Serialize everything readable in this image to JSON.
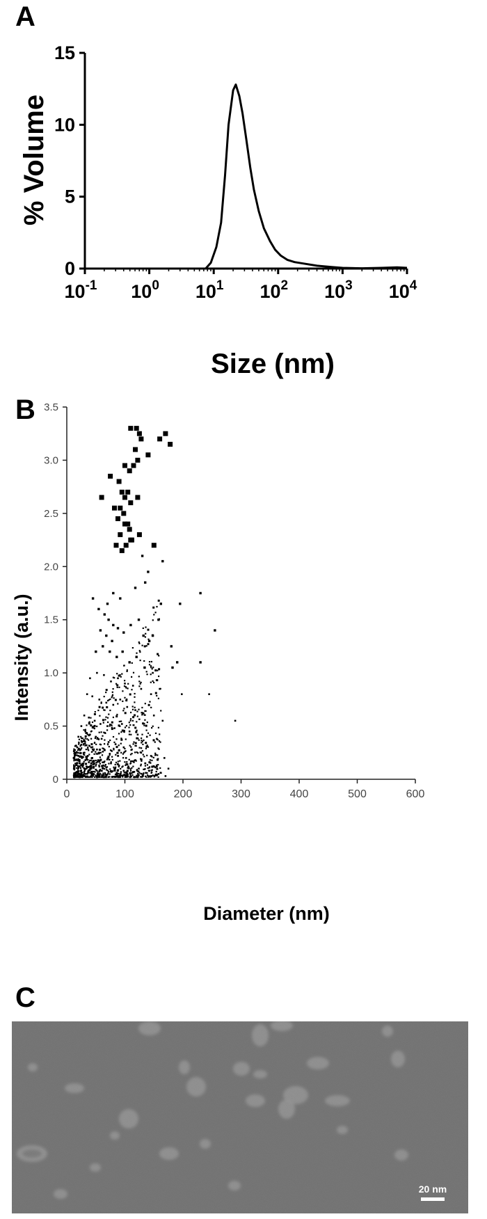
{
  "panels": {
    "a": {
      "label": "A"
    },
    "b": {
      "label": "B"
    },
    "c": {
      "label": "C"
    }
  },
  "chart_data": [
    {
      "type": "line",
      "panel": "A",
      "xlabel": "Size (nm)",
      "ylabel": "% Volume",
      "xscale": "log",
      "xlim": [
        0.1,
        10000
      ],
      "ylim": [
        0,
        15
      ],
      "xticks": [
        {
          "value": 0.1,
          "base": "10",
          "exp": "-1"
        },
        {
          "value": 1,
          "base": "10",
          "exp": "0"
        },
        {
          "value": 10,
          "base": "10",
          "exp": "1"
        },
        {
          "value": 100,
          "base": "10",
          "exp": "2"
        },
        {
          "value": 1000,
          "base": "10",
          "exp": "3"
        },
        {
          "value": 10000,
          "base": "10",
          "exp": "4"
        }
      ],
      "yticks": [
        0,
        5,
        10,
        15
      ],
      "grid": false,
      "series": [
        {
          "x": [
            0.1,
            5,
            7.5,
            9,
            11,
            13,
            15,
            17,
            20,
            22,
            25,
            28,
            32,
            37,
            42,
            50,
            60,
            75,
            90,
            110,
            140,
            180,
            250,
            400,
            700,
            1000,
            2000,
            4000,
            7000,
            10000
          ],
          "y": [
            0,
            0,
            0,
            0.4,
            1.5,
            3.2,
            6.5,
            10,
            12.4,
            12.8,
            12,
            10.8,
            9,
            7,
            5.5,
            4,
            2.8,
            1.9,
            1.3,
            0.9,
            0.6,
            0.45,
            0.35,
            0.2,
            0.1,
            0.05,
            0.02,
            0.05,
            0.08,
            0.05
          ]
        }
      ]
    },
    {
      "type": "scatter",
      "panel": "B",
      "xlabel": "Diameter (nm)",
      "ylabel": "Intensity (a.u.)",
      "xlim": [
        0,
        600
      ],
      "ylim": [
        0,
        3.5
      ],
      "xticks": [
        "0",
        "100",
        "200",
        "300",
        "400",
        "500",
        "600"
      ],
      "yticks": [
        "0",
        "0.5",
        "1.0",
        "1.5",
        "2.0",
        "2.5",
        "3.0",
        "3.5"
      ],
      "grid": false,
      "series": [
        {
          "x": [
            110,
            120,
            125,
            160,
            170,
            178,
            128,
            118,
            140,
            122,
            100,
            108,
            115,
            90,
            95,
            100,
            105,
            110,
            122,
            92,
            98,
            88,
            100,
            108,
            92,
            110,
            85,
            95,
            102,
            112,
            130,
            75,
            60,
            82,
            105,
            125,
            150,
            165,
            140,
            135,
            118,
            92,
            80,
            70,
            55,
            45,
            162,
            158,
            148,
            230,
            195,
            255,
            180,
            190,
            182,
            230,
            198,
            245,
            290,
            65,
            72,
            80,
            58,
            68,
            78,
            88,
            98,
            110,
            124,
            132,
            142,
            50,
            62,
            74,
            86,
            96,
            108,
            120,
            134,
            148,
            40,
            52,
            64,
            76,
            88,
            100,
            114,
            128,
            145,
            160,
            35,
            44,
            56,
            68,
            80,
            92,
            104,
            118,
            132,
            150,
            165,
            30,
            38,
            48,
            58,
            70,
            82,
            95,
            108,
            122,
            138,
            155,
            25,
            32,
            40,
            50,
            60,
            72,
            84,
            98,
            112,
            128,
            145,
            168,
            20,
            26,
            34,
            42,
            52,
            62,
            74,
            88,
            102,
            118,
            135,
            155,
            175,
            18,
            24,
            30,
            36,
            44,
            54,
            64,
            76,
            90,
            106,
            124,
            142,
            162,
            15,
            20,
            26,
            32,
            38,
            46,
            56,
            68,
            82,
            98,
            116,
            136,
            158,
            12,
            16,
            22,
            28,
            34,
            42,
            50,
            60,
            72,
            86,
            104,
            124,
            146,
            170
          ],
          "y": [
            3.3,
            3.3,
            3.25,
            3.2,
            3.25,
            3.15,
            3.2,
            3.1,
            3.05,
            3.0,
            2.95,
            2.9,
            2.95,
            2.8,
            2.7,
            2.65,
            2.7,
            2.6,
            2.65,
            2.55,
            2.5,
            2.45,
            2.4,
            2.35,
            2.3,
            2.25,
            2.2,
            2.15,
            2.2,
            2.25,
            2.1,
            2.85,
            2.65,
            2.55,
            2.4,
            2.3,
            2.2,
            2.05,
            1.95,
            1.85,
            1.8,
            1.7,
            1.75,
            1.65,
            1.6,
            1.7,
            1.65,
            1.5,
            1.35,
            1.75,
            1.65,
            1.4,
            1.25,
            1.1,
            1.05,
            1.1,
            0.8,
            0.8,
            0.55,
            1.55,
            1.5,
            1.45,
            1.4,
            1.35,
            1.3,
            1.42,
            1.38,
            1.45,
            1.5,
            1.35,
            1.3,
            1.2,
            1.25,
            1.2,
            1.15,
            1.2,
            1.1,
            1.15,
            1.05,
            1.0,
            0.95,
            1.0,
            0.98,
            0.92,
            0.95,
            0.9,
            0.88,
            0.85,
            0.8,
            0.85,
            0.8,
            0.78,
            0.75,
            0.72,
            0.7,
            0.75,
            0.68,
            0.65,
            0.62,
            0.6,
            0.55,
            0.6,
            0.58,
            0.55,
            0.52,
            0.5,
            0.48,
            0.52,
            0.45,
            0.42,
            0.4,
            0.38,
            0.5,
            0.45,
            0.42,
            0.4,
            0.38,
            0.35,
            0.33,
            0.3,
            0.28,
            0.25,
            0.22,
            0.2,
            0.4,
            0.35,
            0.32,
            0.3,
            0.28,
            0.26,
            0.24,
            0.22,
            0.2,
            0.18,
            0.15,
            0.12,
            0.1,
            0.3,
            0.28,
            0.25,
            0.22,
            0.2,
            0.18,
            0.16,
            0.15,
            0.13,
            0.12,
            0.1,
            0.08,
            0.06,
            0.25,
            0.22,
            0.2,
            0.18,
            0.16,
            0.14,
            0.12,
            0.11,
            0.1,
            0.08,
            0.07,
            0.06,
            0.05,
            0.2,
            0.18,
            0.15,
            0.13,
            0.12,
            0.1,
            0.09,
            0.08,
            0.07,
            0.06,
            0.05,
            0.04,
            0.03,
            0.03
          ]
        }
      ]
    }
  ],
  "micrograph": {
    "scale_bar_label": "20 nm",
    "background_color": "#6e6e6e",
    "particle_color": "#b4b4b4"
  }
}
